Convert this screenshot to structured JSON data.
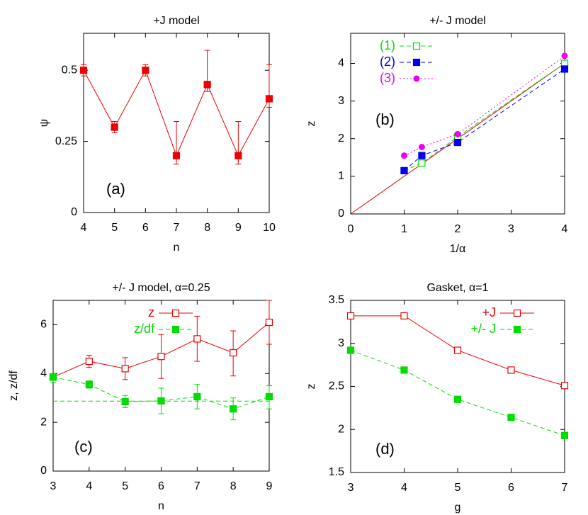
{
  "chart_data": [
    {
      "type": "line",
      "title": "+J model",
      "xlabel": "n",
      "ylabel": "ψ",
      "annotation": "(a)",
      "x": [
        4,
        5,
        6,
        7,
        8,
        9,
        10
      ],
      "xlim": [
        4,
        10
      ],
      "xticks": [
        4,
        5,
        6,
        7,
        8,
        9,
        10
      ],
      "ylim": [
        0,
        0.63
      ],
      "yticks": [
        0,
        0.25,
        0.5
      ],
      "series": [
        {
          "color": "#ee0000",
          "marker": "filled-square",
          "dash": "solid",
          "values": [
            0.5,
            0.3,
            0.5,
            0.2,
            0.45,
            0.2,
            0.4
          ],
          "lower": [
            0.48,
            0.28,
            0.48,
            0.17,
            0.425,
            0.17,
            0.37
          ],
          "upper": [
            0.52,
            0.32,
            0.52,
            0.32,
            0.57,
            0.32,
            0.52
          ]
        }
      ]
    },
    {
      "type": "line",
      "title": "+/- J model",
      "xlabel": "1/α",
      "ylabel": "z",
      "annotation": "(b)",
      "legend": "top-left",
      "x": [
        1,
        1.33,
        2,
        4
      ],
      "xlim": [
        0,
        4
      ],
      "xticks": [
        0,
        1,
        2,
        3,
        4
      ],
      "ylim": [
        0,
        4.8
      ],
      "yticks": [
        0,
        1,
        2,
        3,
        4
      ],
      "lines": [
        {
          "x": [
            0,
            4
          ],
          "y": [
            0,
            4
          ],
          "color": "#ee0000",
          "dash": "solid"
        }
      ],
      "series": [
        {
          "name": "(1)",
          "color": "#00dd00",
          "marker": "open-square",
          "dash": "dashed",
          "values": [
            1.15,
            1.35,
            2.05,
            4.0
          ]
        },
        {
          "name": "(2)",
          "color": "#0000ee",
          "marker": "filled-square",
          "dash": "dashed",
          "values": [
            1.15,
            1.55,
            1.9,
            3.85
          ]
        },
        {
          "name": "(3)",
          "color": "#ee00ee",
          "marker": "filled-circle",
          "dash": "dotted",
          "values": [
            1.55,
            1.78,
            2.12,
            4.2
          ]
        }
      ]
    },
    {
      "type": "line",
      "title": "+/- J model, α=0.25",
      "xlabel": "n",
      "ylabel": "z, z/df",
      "annotation": "(c)",
      "legend": "top-left",
      "x": [
        3,
        4,
        5,
        6,
        7,
        8,
        9
      ],
      "xlim": [
        3,
        9
      ],
      "xticks": [
        3,
        4,
        5,
        6,
        7,
        8,
        9
      ],
      "ylim": [
        0,
        7
      ],
      "yticks": [
        0,
        2,
        4,
        6
      ],
      "lines": [
        {
          "x": [
            3,
            9
          ],
          "y": [
            2.87,
            2.87
          ],
          "color": "#00dd00",
          "dash": "dashed"
        }
      ],
      "series": [
        {
          "name": "z",
          "color": "#ee0000",
          "marker": "open-square",
          "dash": "solid",
          "values": [
            3.85,
            4.5,
            4.2,
            4.7,
            5.42,
            4.85,
            6.1
          ],
          "lower": [
            3.75,
            4.25,
            3.75,
            3.8,
            4.5,
            3.9,
            5.2
          ],
          "upper": [
            3.95,
            4.75,
            4.65,
            5.6,
            6.35,
            5.75,
            7.0
          ]
        },
        {
          "name": "z/df",
          "color": "#00dd00",
          "marker": "filled-square",
          "dash": "dashed",
          "values": [
            3.85,
            3.55,
            2.85,
            2.88,
            3.05,
            2.55,
            3.05
          ],
          "lower": [
            3.65,
            3.4,
            2.6,
            2.35,
            2.55,
            2.1,
            2.55
          ],
          "upper": [
            4.0,
            3.7,
            3.1,
            3.4,
            3.55,
            3.0,
            3.5
          ]
        }
      ]
    },
    {
      "type": "line",
      "title": "Gasket, α=1",
      "xlabel": "g",
      "ylabel": "z",
      "annotation": "(d)",
      "legend": "top-right",
      "x": [
        3,
        4,
        5,
        6,
        7
      ],
      "xlim": [
        3,
        7
      ],
      "xticks": [
        3,
        4,
        5,
        6,
        7
      ],
      "ylim": [
        1.5,
        3.5
      ],
      "yticks": [
        1.5,
        2,
        2.5,
        3,
        3.5
      ],
      "series": [
        {
          "name": "+J",
          "color": "#ee0000",
          "marker": "open-square",
          "dash": "solid",
          "values": [
            3.32,
            3.32,
            2.92,
            2.69,
            2.51
          ]
        },
        {
          "name": "+/- J",
          "color": "#00dd00",
          "marker": "filled-square",
          "dash": "dashed",
          "values": [
            2.92,
            2.69,
            2.35,
            2.14,
            1.93
          ]
        }
      ]
    }
  ]
}
